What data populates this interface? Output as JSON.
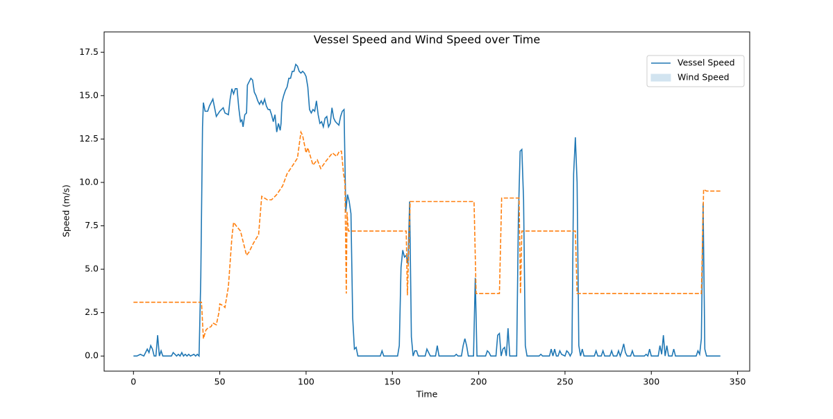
{
  "chart_data": {
    "type": "line",
    "title": "Vessel Speed and Wind Speed over Time",
    "x_label": "Time",
    "y_label": "Speed (m/s)",
    "xlim": [
      -17,
      357
    ],
    "xticks": [
      0,
      50,
      100,
      150,
      200,
      250,
      300,
      350
    ],
    "ylim": [
      -0.87,
      18.67
    ],
    "yticks": [
      {
        "value": 0,
        "label": "0.0"
      },
      {
        "value": 2.5,
        "label": "2.5"
      },
      {
        "value": 5,
        "label": "5.0"
      },
      {
        "value": 7.5,
        "label": "7.5"
      },
      {
        "value": 10,
        "label": "10.0"
      },
      {
        "value": 12.5,
        "label": "12.5"
      },
      {
        "value": 15,
        "label": "15.0"
      },
      {
        "value": 17.5,
        "label": "17.5"
      }
    ],
    "grid": false,
    "legend_position": "upper right",
    "series": [
      {
        "name": "Vessel Speed",
        "color": "#1f77b4",
        "dash": false,
        "legend_swatch": "line",
        "x": [
          0,
          2,
          4,
          6,
          8,
          9,
          10,
          11,
          12,
          13,
          14,
          15,
          16,
          17,
          22,
          23,
          24,
          25,
          26,
          27,
          28,
          29,
          30,
          31,
          32,
          33,
          35,
          36,
          37,
          38,
          39,
          40,
          40.5,
          41.5,
          43,
          44,
          45,
          46,
          47,
          48,
          50,
          52,
          53,
          55,
          56,
          57,
          58,
          59,
          60,
          61,
          62,
          62.8,
          63.5,
          64.5,
          65.5,
          66,
          67,
          68,
          69,
          70,
          71,
          72,
          73,
          74,
          75,
          76,
          77,
          78,
          79,
          80,
          81,
          82,
          83,
          84,
          85,
          85.5,
          86,
          87,
          88,
          89,
          90,
          91,
          92,
          93,
          94,
          95,
          96,
          97,
          98,
          99,
          100,
          101,
          102,
          103,
          104,
          105,
          106,
          107,
          108,
          109,
          110,
          111,
          112,
          113,
          114,
          115,
          116,
          117,
          118,
          119,
          120,
          121,
          122,
          123,
          124,
          125,
          126,
          127,
          128,
          129,
          130,
          143,
          144,
          145,
          153,
          154,
          155,
          156,
          157,
          158,
          159,
          160,
          161,
          162,
          163,
          164,
          165,
          169,
          170,
          171,
          172,
          175,
          176,
          177,
          186,
          187,
          188,
          190,
          191,
          192,
          193,
          194,
          197,
          198,
          199,
          204,
          205,
          206,
          207,
          210,
          211,
          212,
          213,
          214,
          215,
          216,
          217,
          218,
          222,
          223,
          224,
          225,
          226,
          227,
          228,
          235,
          236,
          237,
          241,
          242,
          243,
          244,
          245,
          246,
          247,
          248,
          250,
          251,
          252,
          253,
          254,
          255,
          256,
          257,
          258,
          259,
          260,
          261,
          267,
          268,
          269,
          271,
          272,
          273,
          276,
          277,
          278,
          280,
          281,
          282,
          283,
          284,
          285,
          286,
          288,
          289,
          290,
          296,
          297,
          298,
          299,
          300,
          304,
          305,
          306,
          307,
          308,
          309,
          310,
          312,
          313,
          314,
          326,
          327,
          328,
          329,
          330,
          331,
          332,
          340
        ],
        "values": [
          0,
          0,
          0.1,
          0,
          0.4,
          0.2,
          0.6,
          0.4,
          0,
          0,
          1.2,
          0,
          0.3,
          0,
          0,
          0.2,
          0.1,
          0,
          0.1,
          0,
          0.2,
          0,
          0.1,
          0,
          0.1,
          0,
          0.1,
          0,
          0.1,
          0,
          4.5,
          13.2,
          14.6,
          14.1,
          14.1,
          14.4,
          14.6,
          14.8,
          14.3,
          13.8,
          14.1,
          14.3,
          14.0,
          13.9,
          14.8,
          15.4,
          15.1,
          15.4,
          15.4,
          14.3,
          13.5,
          13.6,
          13.2,
          13.9,
          14.0,
          15.6,
          15.8,
          16.0,
          15.9,
          15.2,
          15.0,
          14.7,
          14.5,
          14.7,
          14.5,
          14.8,
          14.4,
          14.2,
          14.2,
          13.9,
          13.5,
          13.9,
          12.9,
          13.4,
          13.0,
          13.4,
          14.6,
          15.0,
          15.3,
          15.5,
          16.0,
          16.0,
          16.4,
          16.4,
          16.8,
          16.7,
          16.4,
          16.3,
          16.4,
          16.3,
          16.1,
          15.5,
          14.2,
          14.0,
          14.2,
          14.1,
          14.7,
          13.9,
          13.4,
          13.5,
          13.2,
          13.7,
          13.8,
          13.2,
          13.4,
          14.3,
          13.7,
          13.5,
          13.4,
          13.3,
          13.8,
          14.1,
          14.2,
          8.3,
          9.3,
          8.9,
          8.2,
          2.2,
          0.4,
          0.5,
          0,
          0,
          0.3,
          0,
          0,
          0.6,
          5.1,
          6.1,
          5.7,
          5.8,
          5.3,
          8.9,
          1.1,
          0,
          0.3,
          0.3,
          0,
          0,
          0.4,
          0.2,
          0,
          0,
          0.6,
          0,
          0,
          0.1,
          0,
          0,
          0.6,
          1.0,
          0.6,
          0,
          0,
          4.5,
          0,
          0,
          0.3,
          0.2,
          0,
          0,
          1.2,
          1.3,
          0,
          0.4,
          0.5,
          0,
          1.6,
          0,
          0,
          8,
          11.8,
          11.9,
          9.0,
          0.6,
          0,
          0,
          0.1,
          0,
          0,
          0.4,
          0,
          0.4,
          0,
          0,
          0.3,
          0.1,
          0,
          0.3,
          0.2,
          0,
          0.2,
          10.5,
          12.6,
          10,
          0.6,
          0,
          0.4,
          0,
          0,
          0.3,
          0,
          0,
          0.3,
          0,
          0,
          0.3,
          0,
          0,
          0.3,
          0,
          0.3,
          0.7,
          0.2,
          0,
          0,
          0.3,
          0,
          0,
          0.1,
          0,
          0.4,
          0,
          0,
          0.6,
          0.1,
          1.2,
          0,
          0.6,
          0,
          0,
          0.4,
          0,
          0,
          0.3,
          0.1,
          1.0,
          8.8,
          0.4,
          0,
          0
        ]
      },
      {
        "name": "Wind Speed",
        "color": "#ff7f0e",
        "dash": true,
        "legend_swatch": "patch",
        "legend_color": "#d2e4f0",
        "x": [
          0,
          39.4,
          40.5,
          42,
          43,
          45,
          46,
          48,
          49.5,
          50,
          52,
          53,
          55,
          57,
          58,
          59.5,
          62,
          65.5,
          67,
          69.5,
          72.5,
          74.3,
          77.5,
          80,
          83,
          86.4,
          89,
          92.4,
          95,
          97,
          98,
          100,
          101,
          104,
          106.5,
          108.5,
          111.3,
          115.3,
          117.7,
          119.3,
          120.5,
          121.7,
          122.5,
          123.3,
          123.7,
          124.5,
          158,
          158.7,
          160.3,
          197.3,
          198.5,
          212,
          213.3,
          223.4,
          224.2,
          225,
          256,
          257,
          329,
          330.3,
          332,
          340
        ],
        "values": [
          3.1,
          3.1,
          1.0,
          1.5,
          1.6,
          1.7,
          1.9,
          1.8,
          2.5,
          3.0,
          2.9,
          2.8,
          4.0,
          6.8,
          7.7,
          7.5,
          7.2,
          5.8,
          6.0,
          6.5,
          7.0,
          9.2,
          9.0,
          9.0,
          9.3,
          9.8,
          10.5,
          11.0,
          11.4,
          12.9,
          12.7,
          11.7,
          12.0,
          11.0,
          11.3,
          10.8,
          11.2,
          11.7,
          11.5,
          11.8,
          11.8,
          10.5,
          10.0,
          3.6,
          8.3,
          7.2,
          7.2,
          3.5,
          8.9,
          8.9,
          3.6,
          3.6,
          9.1,
          9.1,
          3.6,
          7.2,
          7.2,
          3.6,
          3.6,
          9.6,
          9.5,
          9.5
        ]
      }
    ]
  }
}
